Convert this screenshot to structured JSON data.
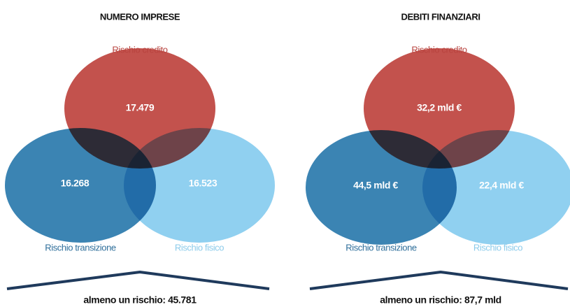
{
  "panels": [
    {
      "title": "NUMERO IMPRESE",
      "credit": {
        "label": "Rischio credito",
        "value": "17.479"
      },
      "transition": {
        "label": "Rischio transizione",
        "value": "16.268"
      },
      "physical": {
        "label": "Rischio fisico",
        "value": "16.523"
      },
      "footer": "almeno un rischio: 45.781"
    },
    {
      "title": "DEBITI FINANZIARI",
      "credit": {
        "label": "Rischio credito",
        "value": "32,2 mld €"
      },
      "transition": {
        "label": "Rischio transizione",
        "value": "44,5 mld €"
      },
      "physical": {
        "label": "Rischio fisico",
        "value": "22,4 mld €"
      },
      "footer": "almeno un rischio: 87,7 mld"
    }
  ]
}
